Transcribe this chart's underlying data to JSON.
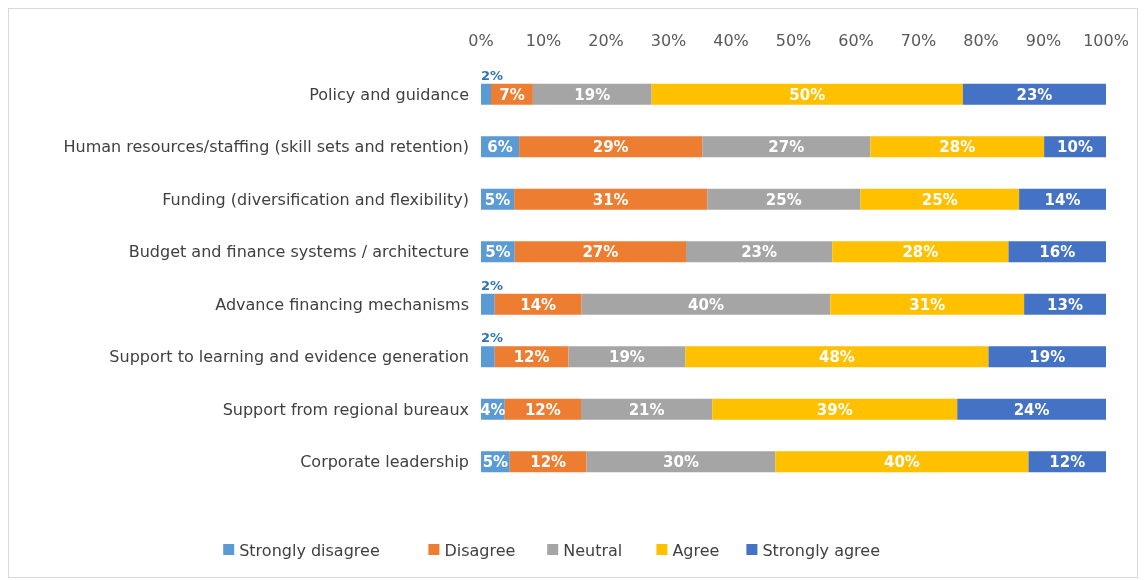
{
  "chart_data": {
    "type": "bar",
    "orientation": "horizontal",
    "stacked": true,
    "categories": [
      "Policy and guidance",
      "Human resources/staffing (skill sets and retention)",
      "Funding (diversification and flexibility)",
      "Budget and finance systems / architecture",
      "Advance financing mechanisms",
      "Support to learning and evidence generation",
      "Support from regional bureaux",
      "Corporate leadership"
    ],
    "series": [
      {
        "name": "Strongly disagree",
        "color": "#5b9bd5",
        "values": [
          1.6,
          6.1,
          5.3,
          5.4,
          2.2,
          2.2,
          3.8,
          4.6
        ],
        "value_labels": [
          "2%",
          "6%",
          "5%",
          "5%",
          "2%",
          "2%",
          "4%",
          "5%"
        ]
      },
      {
        "name": "Disagree",
        "color": "#ed7d31",
        "values": [
          6.7,
          29.3,
          30.9,
          27.4,
          13.9,
          11.8,
          12.2,
          12.3
        ],
        "value_labels": [
          "7%",
          "29%",
          "31%",
          "27%",
          "14%",
          "12%",
          "12%",
          "12%"
        ]
      },
      {
        "name": "Neutral",
        "color": "#a5a5a5",
        "values": [
          19,
          26.9,
          24.5,
          23.4,
          39.8,
          18.7,
          21,
          30.2
        ],
        "value_labels": [
          "19%",
          "27%",
          "25%",
          "23%",
          "40%",
          "19%",
          "21%",
          "30%"
        ]
      },
      {
        "name": "Agree",
        "color": "#ffc000",
        "values": [
          49.8,
          27.8,
          25.4,
          28.2,
          31,
          48.5,
          39.2,
          40.5
        ],
        "value_labels": [
          "50%",
          "28%",
          "25%",
          "28%",
          "31%",
          "48%",
          "39%",
          "40%"
        ]
      },
      {
        "name": "Strongly agree",
        "color": "#4472c4",
        "values": [
          22.9,
          9.9,
          13.9,
          15.6,
          13.1,
          18.8,
          23.8,
          12.4
        ],
        "value_labels": [
          "23%",
          "10%",
          "14%",
          "16%",
          "13%",
          "19%",
          "24%",
          "12%"
        ]
      }
    ],
    "xlim": [
      0,
      100
    ],
    "xticks": [
      {
        "value": 0,
        "label": "0%"
      },
      {
        "value": 10,
        "label": "10%"
      },
      {
        "value": 20,
        "label": "20%"
      },
      {
        "value": 30,
        "label": "30%"
      },
      {
        "value": 40,
        "label": "40%"
      },
      {
        "value": 50,
        "label": "50%"
      },
      {
        "value": 60,
        "label": "60%"
      },
      {
        "value": 70,
        "label": "70%"
      },
      {
        "value": 80,
        "label": "80%"
      },
      {
        "value": 90,
        "label": "90%"
      },
      {
        "value": 100,
        "label": "100%"
      }
    ],
    "legend": "bottom"
  }
}
